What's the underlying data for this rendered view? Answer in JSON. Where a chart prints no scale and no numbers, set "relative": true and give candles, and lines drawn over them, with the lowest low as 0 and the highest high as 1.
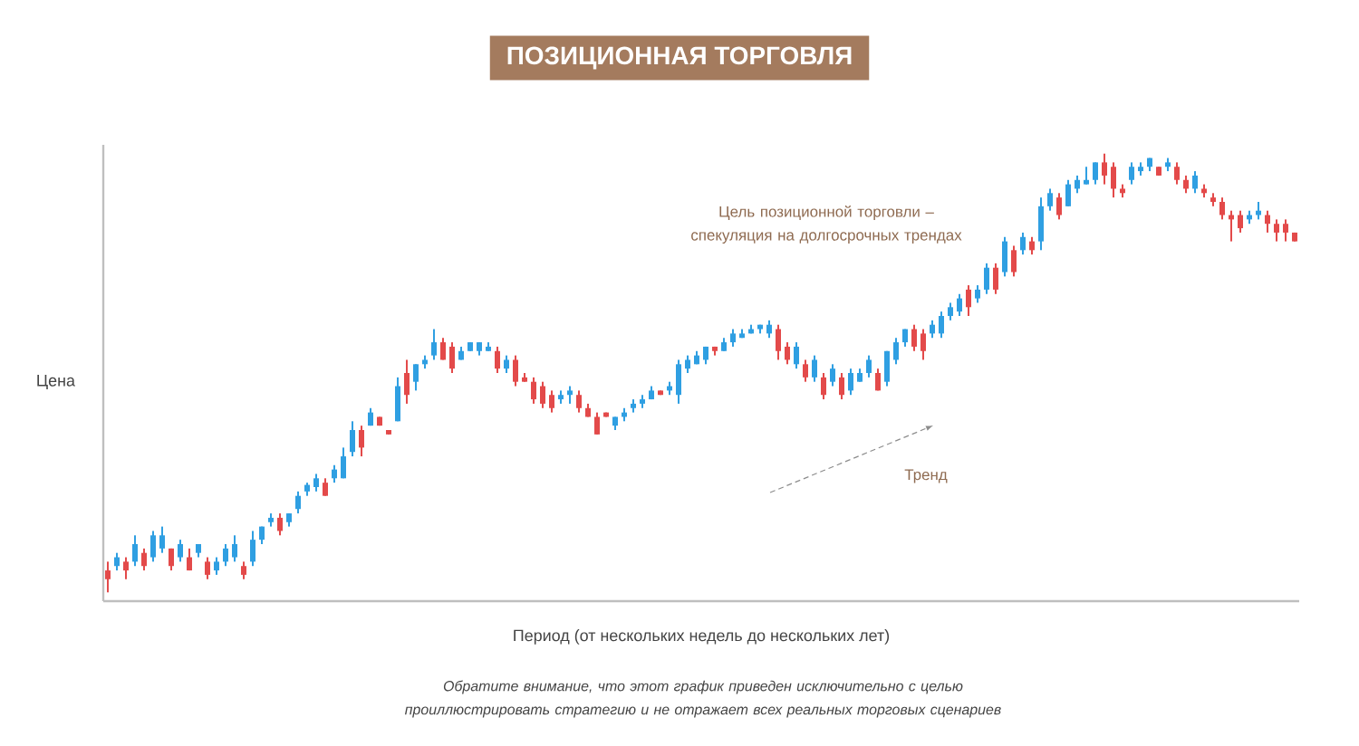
{
  "chart_data": {
    "type": "candlestick",
    "title": "ПОЗИЦИОННАЯ ТОРГОВЛЯ",
    "xlabel": "Период (от нескольких недель до нескольких лет)",
    "ylabel": "Цена",
    "relative": true,
    "colors": [
      "#e34a4a",
      "#2f9fe2",
      "#e34a4a",
      "#2f9fe2",
      "#e34a4a",
      "#2f9fe2",
      "#2f9fe2",
      "#e34a4a",
      "#2f9fe2",
      "#e34a4a",
      "#2f9fe2",
      "#e34a4a",
      "#2f9fe2",
      "#2f9fe2",
      "#2f9fe2",
      "#e34a4a",
      "#2f9fe2",
      "#2f9fe2",
      "#2f9fe2",
      "#e34a4a",
      "#2f9fe2",
      "#2f9fe2",
      "#2f9fe2",
      "#2f9fe2",
      "#e34a4a",
      "#2f9fe2",
      "#2f9fe2",
      "#2f9fe2",
      "#e34a4a",
      "#2f9fe2",
      "#e34a4a",
      "#e34a4a",
      "#2f9fe2",
      "#e34a4a",
      "#2f9fe2",
      "#2f9fe2",
      "#2f9fe2",
      "#e34a4a",
      "#e34a4a",
      "#2f9fe2",
      "#2f9fe2",
      "#2f9fe2",
      "#2f9fe2",
      "#e34a4a",
      "#2f9fe2",
      "#e34a4a",
      "#e34a4a",
      "#e34a4a",
      "#e34a4a",
      "#e34a4a",
      "#2f9fe2",
      "#2f9fe2",
      "#e34a4a",
      "#e34a4a",
      "#e34a4a",
      "#e34a4a",
      "#2f9fe2",
      "#2f9fe2",
      "#2f9fe2",
      "#2f9fe2",
      "#2f9fe2",
      "#e34a4a",
      "#2f9fe2",
      "#2f9fe2",
      "#2f9fe2",
      "#2f9fe2",
      "#2f9fe2",
      "#e34a4a",
      "#2f9fe2",
      "#2f9fe2",
      "#2f9fe2",
      "#2f9fe2",
      "#2f9fe2",
      "#2f9fe2",
      "#e34a4a",
      "#e34a4a",
      "#2f9fe2",
      "#e34a4a",
      "#2f9fe2",
      "#e34a4a",
      "#2f9fe2",
      "#e34a4a",
      "#2f9fe2",
      "#2f9fe2",
      "#2f9fe2",
      "#e34a4a",
      "#2f9fe2",
      "#2f9fe2",
      "#2f9fe2",
      "#e34a4a",
      "#e34a4a",
      "#2f9fe2",
      "#2f9fe2",
      "#2f9fe2",
      "#2f9fe2",
      "#e34a4a",
      "#2f9fe2",
      "#2f9fe2",
      "#e34a4a",
      "#2f9fe2",
      "#e34a4a",
      "#2f9fe2",
      "#e34a4a",
      "#2f9fe2",
      "#2f9fe2",
      "#e34a4a",
      "#2f9fe2",
      "#2f9fe2",
      "#2f9fe2",
      "#2f9fe2",
      "#e34a4a",
      "#e34a4a",
      "#e34a4a",
      "#2f9fe2",
      "#2f9fe2",
      "#2f9fe2",
      "#e34a4a",
      "#2f9fe2",
      "#e34a4a",
      "#e34a4a",
      "#2f9fe2",
      "#e34a4a",
      "#e34a4a",
      "#e34a4a",
      "#e34a4a",
      "#e34a4a",
      "#2f9fe2",
      "#2f9fe2",
      "#e34a4a",
      "#e34a4a",
      "#e34a4a",
      "#e34a4a"
    ],
    "annotations": [
      "Цель позиционной торговли – спекуляция на долгосрочных трендах",
      "Тренд",
      "Обратите внимание, что этот график приведен исключительно с целью проиллюстрировать стратегию и не отражает всех реальных торговых сценариев"
    ],
    "categories": [
      null,
      null,
      null,
      null,
      null,
      null,
      null,
      null,
      null,
      null,
      null,
      null,
      null,
      null,
      null,
      null,
      null,
      null,
      null,
      null,
      null,
      null,
      null,
      null,
      null,
      null,
      null,
      null,
      null,
      null,
      null,
      null,
      null,
      null,
      null,
      null,
      null,
      null,
      null,
      null,
      null,
      null,
      null,
      null,
      null,
      null,
      null,
      null,
      null,
      null,
      null,
      null,
      null,
      null,
      null,
      null,
      null,
      null,
      null,
      null,
      null,
      null,
      null,
      null,
      null,
      null,
      null,
      null,
      null,
      null,
      null,
      null,
      null,
      null,
      null,
      null,
      null,
      null,
      null,
      null,
      null,
      null,
      null,
      null,
      null,
      null,
      null,
      null,
      null,
      null,
      null,
      null,
      null,
      null,
      null,
      null,
      null,
      null,
      null,
      null,
      null,
      null,
      null,
      null,
      null,
      null,
      null,
      null,
      null,
      null,
      null,
      null,
      null,
      null,
      null,
      null,
      null,
      null,
      null,
      null,
      null,
      null,
      null,
      null,
      null,
      null,
      null,
      null,
      null,
      null,
      null,
      null
    ],
    "ohlc": [
      [
        0.05,
        0.07,
        0.0,
        0.03
      ],
      [
        0.06,
        0.09,
        0.05,
        0.08
      ],
      [
        0.07,
        0.08,
        0.03,
        0.05
      ],
      [
        0.07,
        0.13,
        0.06,
        0.11
      ],
      [
        0.09,
        0.1,
        0.05,
        0.06
      ],
      [
        0.08,
        0.14,
        0.07,
        0.13
      ],
      [
        0.1,
        0.15,
        0.09,
        0.13
      ],
      [
        0.1,
        0.1,
        0.05,
        0.06
      ],
      [
        0.08,
        0.12,
        0.07,
        0.11
      ],
      [
        0.08,
        0.1,
        0.05,
        0.05
      ],
      [
        0.09,
        0.11,
        0.08,
        0.11
      ],
      [
        0.07,
        0.08,
        0.03,
        0.04
      ],
      [
        0.05,
        0.08,
        0.04,
        0.07
      ],
      [
        0.07,
        0.11,
        0.06,
        0.1
      ],
      [
        0.08,
        0.13,
        0.07,
        0.11
      ],
      [
        0.06,
        0.07,
        0.03,
        0.04
      ],
      [
        0.07,
        0.14,
        0.06,
        0.12
      ],
      [
        0.12,
        0.15,
        0.11,
        0.15
      ],
      [
        0.16,
        0.18,
        0.15,
        0.17
      ],
      [
        0.17,
        0.18,
        0.13,
        0.14
      ],
      [
        0.16,
        0.18,
        0.15,
        0.18
      ],
      [
        0.19,
        0.23,
        0.18,
        0.22
      ],
      [
        0.23,
        0.25,
        0.22,
        0.245
      ],
      [
        0.24,
        0.27,
        0.23,
        0.26
      ],
      [
        0.25,
        0.26,
        0.22,
        0.22
      ],
      [
        0.26,
        0.29,
        0.25,
        0.28
      ],
      [
        0.26,
        0.33,
        0.26,
        0.31
      ],
      [
        0.32,
        0.39,
        0.31,
        0.37
      ],
      [
        0.37,
        0.38,
        0.31,
        0.33
      ],
      [
        0.38,
        0.42,
        0.38,
        0.41
      ],
      [
        0.4,
        0.4,
        0.38,
        0.38
      ],
      [
        0.37,
        0.37,
        0.36,
        0.36
      ],
      [
        0.39,
        0.49,
        0.39,
        0.47
      ],
      [
        0.5,
        0.53,
        0.43,
        0.45
      ],
      [
        0.48,
        0.52,
        0.46,
        0.52
      ],
      [
        0.52,
        0.54,
        0.51,
        0.53
      ],
      [
        0.54,
        0.6,
        0.53,
        0.57
      ],
      [
        0.57,
        0.58,
        0.53,
        0.53
      ],
      [
        0.56,
        0.57,
        0.5,
        0.51
      ],
      [
        0.53,
        0.56,
        0.53,
        0.55
      ],
      [
        0.55,
        0.57,
        0.55,
        0.57
      ],
      [
        0.55,
        0.57,
        0.54,
        0.57
      ],
      [
        0.55,
        0.57,
        0.55,
        0.56
      ],
      [
        0.55,
        0.56,
        0.5,
        0.51
      ],
      [
        0.51,
        0.54,
        0.5,
        0.53
      ],
      [
        0.53,
        0.54,
        0.47,
        0.48
      ],
      [
        0.49,
        0.5,
        0.48,
        0.48
      ],
      [
        0.48,
        0.49,
        0.43,
        0.44
      ],
      [
        0.47,
        0.48,
        0.42,
        0.43
      ],
      [
        0.45,
        0.46,
        0.41,
        0.42
      ],
      [
        0.44,
        0.46,
        0.43,
        0.45
      ],
      [
        0.45,
        0.47,
        0.43,
        0.46
      ],
      [
        0.45,
        0.46,
        0.41,
        0.42
      ],
      [
        0.42,
        0.43,
        0.4,
        0.4
      ],
      [
        0.4,
        0.41,
        0.36,
        0.36
      ],
      [
        0.41,
        0.41,
        0.4,
        0.4
      ],
      [
        0.38,
        0.4,
        0.37,
        0.4
      ],
      [
        0.4,
        0.42,
        0.39,
        0.41
      ],
      [
        0.42,
        0.44,
        0.41,
        0.43
      ],
      [
        0.43,
        0.45,
        0.42,
        0.44
      ],
      [
        0.44,
        0.47,
        0.44,
        0.46
      ],
      [
        0.46,
        0.46,
        0.45,
        0.45
      ],
      [
        0.46,
        0.48,
        0.45,
        0.47
      ],
      [
        0.45,
        0.53,
        0.43,
        0.52
      ],
      [
        0.51,
        0.54,
        0.5,
        0.53
      ],
      [
        0.52,
        0.55,
        0.52,
        0.54
      ],
      [
        0.53,
        0.56,
        0.52,
        0.56
      ],
      [
        0.56,
        0.56,
        0.54,
        0.55
      ],
      [
        0.55,
        0.58,
        0.55,
        0.57
      ],
      [
        0.57,
        0.6,
        0.56,
        0.59
      ],
      [
        0.58,
        0.6,
        0.58,
        0.59
      ],
      [
        0.59,
        0.61,
        0.59,
        0.6
      ],
      [
        0.6,
        0.61,
        0.59,
        0.61
      ],
      [
        0.59,
        0.62,
        0.58,
        0.61
      ],
      [
        0.6,
        0.61,
        0.53,
        0.55
      ],
      [
        0.56,
        0.57,
        0.52,
        0.53
      ],
      [
        0.52,
        0.57,
        0.51,
        0.56
      ],
      [
        0.52,
        0.53,
        0.48,
        0.49
      ],
      [
        0.49,
        0.54,
        0.48,
        0.53
      ],
      [
        0.49,
        0.5,
        0.44,
        0.45
      ],
      [
        0.48,
        0.52,
        0.47,
        0.51
      ],
      [
        0.49,
        0.5,
        0.44,
        0.45
      ],
      [
        0.46,
        0.51,
        0.45,
        0.5
      ],
      [
        0.48,
        0.51,
        0.48,
        0.5
      ],
      [
        0.5,
        0.54,
        0.49,
        0.53
      ],
      [
        0.5,
        0.51,
        0.46,
        0.46
      ],
      [
        0.48,
        0.55,
        0.47,
        0.55
      ],
      [
        0.53,
        0.58,
        0.52,
        0.57
      ],
      [
        0.57,
        0.6,
        0.56,
        0.6
      ],
      [
        0.6,
        0.61,
        0.55,
        0.56
      ],
      [
        0.59,
        0.6,
        0.53,
        0.55
      ],
      [
        0.59,
        0.62,
        0.58,
        0.61
      ],
      [
        0.59,
        0.64,
        0.58,
        0.63
      ],
      [
        0.63,
        0.66,
        0.62,
        0.65
      ],
      [
        0.64,
        0.68,
        0.63,
        0.67
      ],
      [
        0.69,
        0.7,
        0.63,
        0.65
      ],
      [
        0.67,
        0.7,
        0.66,
        0.69
      ],
      [
        0.69,
        0.75,
        0.68,
        0.74
      ],
      [
        0.74,
        0.75,
        0.68,
        0.69
      ],
      [
        0.73,
        0.81,
        0.72,
        0.8
      ],
      [
        0.78,
        0.79,
        0.72,
        0.73
      ],
      [
        0.78,
        0.82,
        0.77,
        0.81
      ],
      [
        0.8,
        0.81,
        0.77,
        0.78
      ],
      [
        0.8,
        0.9,
        0.78,
        0.88
      ],
      [
        0.88,
        0.92,
        0.87,
        0.91
      ],
      [
        0.9,
        0.91,
        0.85,
        0.86
      ],
      [
        0.88,
        0.94,
        0.88,
        0.93
      ],
      [
        0.92,
        0.95,
        0.91,
        0.94
      ],
      [
        0.93,
        0.97,
        0.93,
        0.94
      ],
      [
        0.94,
        0.98,
        0.93,
        0.98
      ],
      [
        0.98,
        1.0,
        0.93,
        0.95
      ],
      [
        0.97,
        0.98,
        0.9,
        0.92
      ],
      [
        0.92,
        0.93,
        0.9,
        0.91
      ],
      [
        0.94,
        0.98,
        0.93,
        0.97
      ],
      [
        0.96,
        0.98,
        0.95,
        0.97
      ],
      [
        0.97,
        0.99,
        0.96,
        0.99
      ],
      [
        0.97,
        0.97,
        0.95,
        0.95
      ],
      [
        0.97,
        0.99,
        0.96,
        0.98
      ],
      [
        0.97,
        0.98,
        0.93,
        0.94
      ],
      [
        0.94,
        0.95,
        0.91,
        0.92
      ],
      [
        0.92,
        0.96,
        0.91,
        0.95
      ],
      [
        0.92,
        0.93,
        0.9,
        0.91
      ],
      [
        0.9,
        0.91,
        0.88,
        0.89
      ],
      [
        0.89,
        0.9,
        0.85,
        0.86
      ],
      [
        0.86,
        0.87,
        0.8,
        0.85
      ],
      [
        0.86,
        0.87,
        0.82,
        0.83
      ],
      [
        0.85,
        0.87,
        0.84,
        0.86
      ],
      [
        0.86,
        0.89,
        0.85,
        0.87
      ],
      [
        0.86,
        0.87,
        0.82,
        0.84
      ],
      [
        0.84,
        0.85,
        0.8,
        0.82
      ],
      [
        0.84,
        0.85,
        0.8,
        0.82
      ],
      [
        0.82,
        0.82,
        0.8,
        0.8
      ]
    ]
  }
}
